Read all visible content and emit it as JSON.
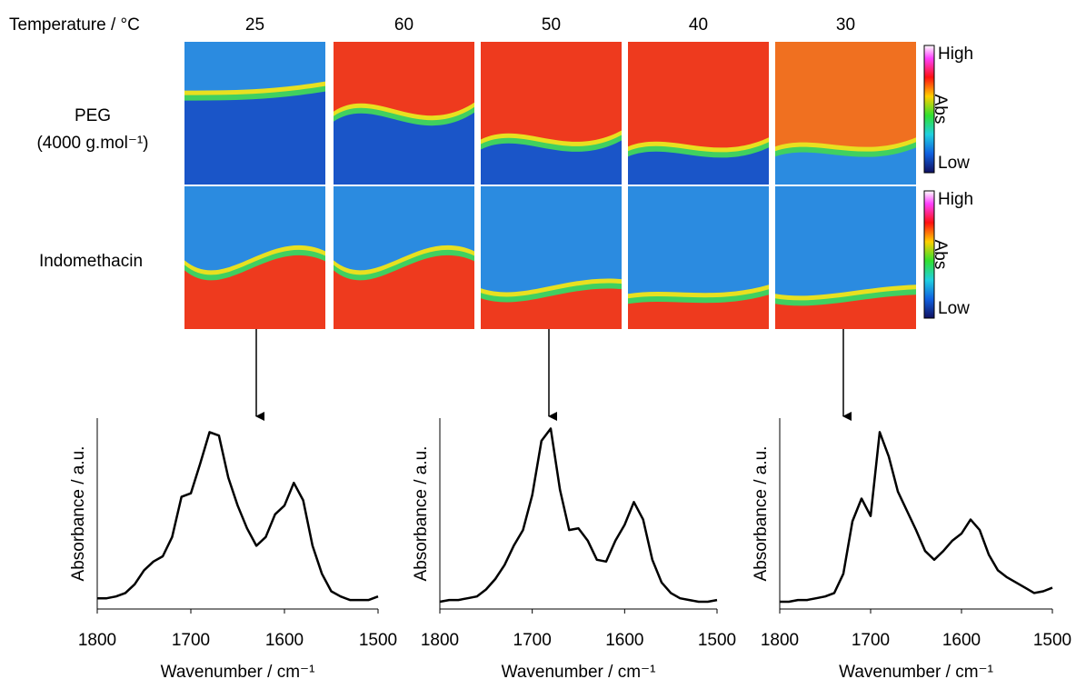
{
  "header": {
    "temperature_label": "Temperature / °C",
    "temperatures": [
      25,
      60,
      50,
      40,
      30
    ]
  },
  "rows": [
    {
      "label": "PEG",
      "sublabel": "(4000 g.mol⁻¹)"
    },
    {
      "label": "Indomethacin"
    }
  ],
  "colorbar": {
    "high": "High",
    "label": "Abs",
    "low": "Low"
  },
  "chart_data": [
    {
      "type": "line",
      "xlabel": "Wavenumber / cm⁻¹",
      "ylabel": "Absorbance / a.u.",
      "x": [
        1800,
        1790,
        1780,
        1770,
        1760,
        1750,
        1740,
        1730,
        1720,
        1710,
        1700,
        1690,
        1680,
        1670,
        1660,
        1650,
        1640,
        1630,
        1620,
        1610,
        1600,
        1590,
        1580,
        1570,
        1560,
        1550,
        1540,
        1530,
        1520,
        1510,
        1500
      ],
      "values": [
        0.02,
        0.02,
        0.03,
        0.05,
        0.1,
        0.18,
        0.23,
        0.26,
        0.37,
        0.6,
        0.62,
        0.79,
        0.97,
        0.95,
        0.71,
        0.55,
        0.42,
        0.32,
        0.37,
        0.5,
        0.55,
        0.68,
        0.58,
        0.32,
        0.16,
        0.06,
        0.03,
        0.01,
        0.01,
        0.01,
        0.03
      ],
      "xlim": [
        1800,
        1500
      ],
      "xticks": [
        1800,
        1700,
        1600,
        1500
      ],
      "ylim": [
        0,
        1.05
      ],
      "color": "#000000"
    },
    {
      "type": "line",
      "xlabel": "Wavenumber / cm⁻¹",
      "ylabel": "Absorbance / a.u.",
      "x": [
        1800,
        1790,
        1780,
        1770,
        1760,
        1750,
        1740,
        1730,
        1720,
        1710,
        1700,
        1690,
        1680,
        1670,
        1660,
        1650,
        1640,
        1630,
        1620,
        1610,
        1600,
        1590,
        1580,
        1570,
        1560,
        1550,
        1540,
        1530,
        1520,
        1510,
        1500
      ],
      "values": [
        0,
        0.01,
        0.01,
        0.02,
        0.03,
        0.07,
        0.13,
        0.21,
        0.32,
        0.41,
        0.61,
        0.92,
        0.99,
        0.64,
        0.41,
        0.42,
        0.35,
        0.24,
        0.23,
        0.35,
        0.44,
        0.57,
        0.47,
        0.24,
        0.11,
        0.05,
        0.02,
        0.01,
        0,
        0,
        0.01
      ],
      "xlim": [
        1800,
        1500
      ],
      "xticks": [
        1800,
        1700,
        1600,
        1500
      ],
      "ylim": [
        0,
        1.05
      ],
      "color": "#000000"
    },
    {
      "type": "line",
      "xlabel": "Wavenumber / cm⁻¹",
      "ylabel": "Absorbance / a.u.",
      "x": [
        1800,
        1790,
        1780,
        1770,
        1760,
        1750,
        1740,
        1730,
        1720,
        1710,
        1700,
        1690,
        1680,
        1670,
        1660,
        1650,
        1640,
        1630,
        1620,
        1610,
        1600,
        1590,
        1580,
        1570,
        1560,
        1550,
        1540,
        1530,
        1520,
        1510,
        1500
      ],
      "values": [
        0,
        0,
        0.01,
        0.01,
        0.02,
        0.03,
        0.05,
        0.16,
        0.46,
        0.59,
        0.49,
        0.97,
        0.83,
        0.63,
        0.52,
        0.41,
        0.29,
        0.24,
        0.29,
        0.35,
        0.39,
        0.47,
        0.41,
        0.27,
        0.18,
        0.14,
        0.11,
        0.08,
        0.05,
        0.06,
        0.08
      ],
      "xlim": [
        1800,
        1500
      ],
      "xticks": [
        1800,
        1700,
        1600,
        1500
      ],
      "ylim": [
        0,
        1.05
      ],
      "color": "#000000"
    }
  ]
}
